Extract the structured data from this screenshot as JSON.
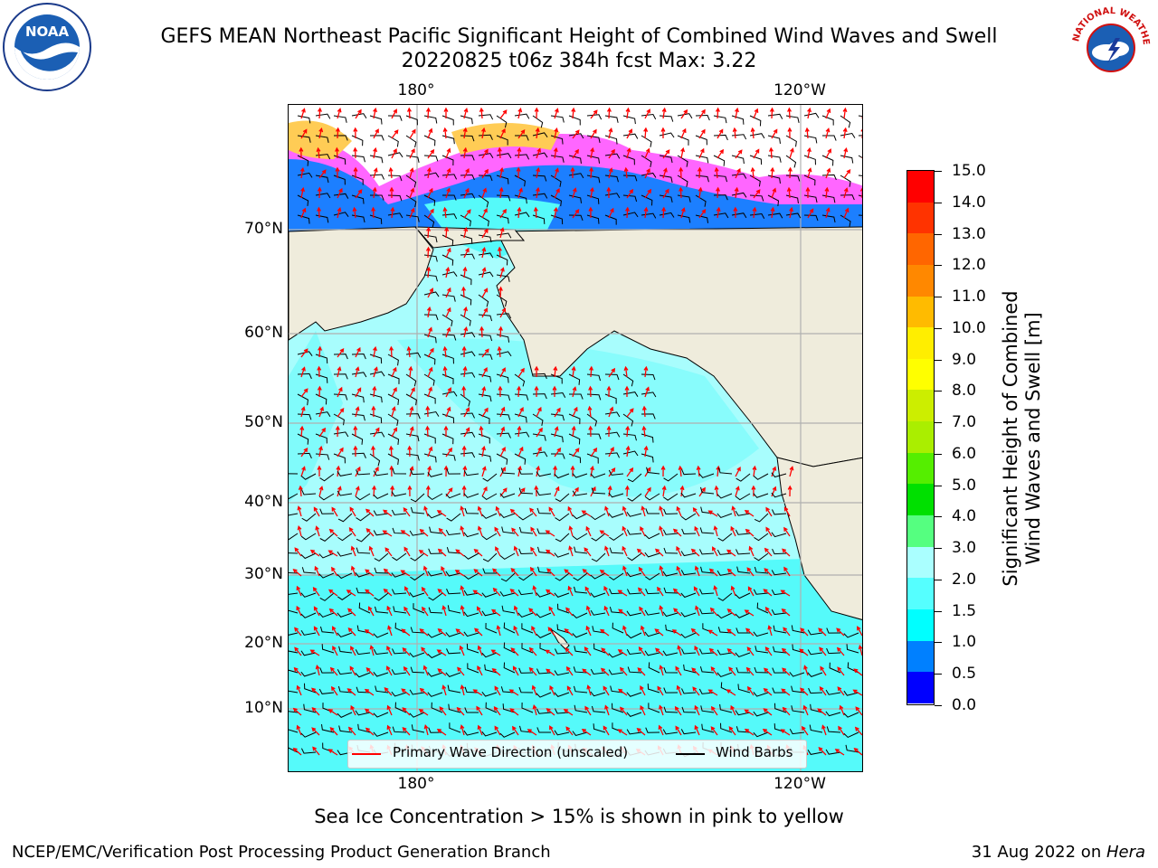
{
  "title": {
    "line1": "GEFS MEAN Northeast Pacific Significant Height of Combined Wind Waves and Swell",
    "line2": "20220825 t06z 384h fcst   Max: 3.22"
  },
  "map": {
    "lon_labels_top": [
      "180°",
      "120°W"
    ],
    "lon_labels_bottom": [
      "180°",
      "120°W"
    ],
    "lat_labels": [
      "70°N",
      "60°N",
      "50°N",
      "40°N",
      "30°N",
      "20°N",
      "10°N"
    ],
    "colors": {
      "land": "#efecdc",
      "ice": "#ffffff",
      "ocean_light": "#a8fdfd",
      "ocean_mid": "#55fafa",
      "grid": "#b0b0b0",
      "wave_arrow": "#ff0000",
      "wind_barb": "#000000"
    }
  },
  "legend": {
    "wave_label": "Primary Wave Direction (unscaled)",
    "wind_label": "Wind Barbs"
  },
  "colorbar": {
    "title_line1": "Significant Height of Combined",
    "title_line2": "Wind Waves and Swell [m]",
    "ticks": [
      "0.0",
      "0.5",
      "1.0",
      "1.5",
      "2.0",
      "3.0",
      "4.0",
      "5.0",
      "6.0",
      "7.0",
      "8.0",
      "9.0",
      "10.0",
      "11.0",
      "12.0",
      "13.0",
      "14.0",
      "15.0"
    ],
    "colors": [
      "#0000ff",
      "#0080ff",
      "#00ffff",
      "#55ffff",
      "#aaffff",
      "#55ff80",
      "#00e000",
      "#55ee00",
      "#aaee00",
      "#ccee00",
      "#ffff00",
      "#ffee00",
      "#ffbb00",
      "#ff8800",
      "#ff6600",
      "#ff3300",
      "#ff0000"
    ]
  },
  "note": "Sea Ice Concentration > 15% is shown in pink to yellow",
  "footer": {
    "left": "NCEP/EMC/Verification Post Processing Product Generation Branch",
    "right_date": "31 Aug 2022 on ",
    "right_host": "Hera"
  },
  "logos": {
    "noaa_text": "NOAA",
    "nws_text": "NATIONAL WEATHER SERVICE",
    "noaa_icon": "noaa-logo-icon",
    "nws_icon": "nws-logo-icon"
  }
}
